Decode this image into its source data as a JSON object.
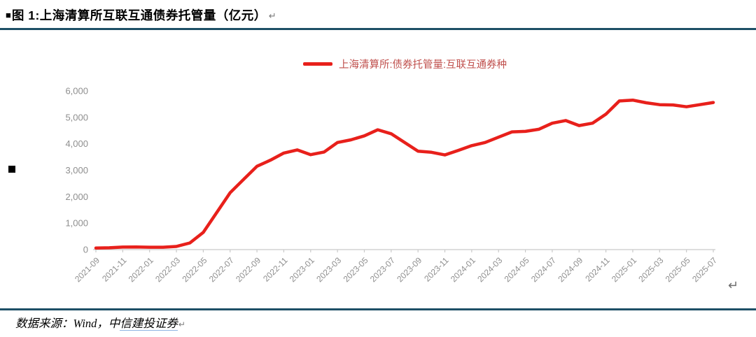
{
  "page": {
    "title_bullet": "■",
    "title": "图 1:上海清算所互联互通债券托管量（亿元）",
    "return_mark": "↵"
  },
  "legend": {
    "label": "上海清算所:债券托管量:互联互通券种"
  },
  "footer": {
    "prefix": "数据来源：Wind，中",
    "link": "信建投证券",
    "return_mark": "↵"
  },
  "colors": {
    "line": "#e8201b",
    "legend_text": "#c0504d",
    "rule": "#1d4f66",
    "axis_text": "#8e8e8e",
    "axis_line": "#c9c9c9"
  },
  "chart_data": {
    "type": "line",
    "title": "上海清算所互联互通债券托管量（亿元）",
    "series_name": "上海清算所:债券托管量:互联互通券种",
    "x": [
      "2021-09",
      "2021-10",
      "2021-11",
      "2021-12",
      "2022-01",
      "2022-02",
      "2022-03",
      "2022-04",
      "2022-05",
      "2022-06",
      "2022-07",
      "2022-08",
      "2022-09",
      "2022-10",
      "2022-11",
      "2022-12",
      "2023-01",
      "2023-02",
      "2023-03",
      "2023-04",
      "2023-05",
      "2023-06",
      "2023-07",
      "2023-08",
      "2023-09",
      "2023-10",
      "2023-11",
      "2023-12",
      "2024-01",
      "2024-02",
      "2024-03",
      "2024-04",
      "2024-05",
      "2024-06",
      "2024-07",
      "2024-08",
      "2024-09",
      "2024-10",
      "2024-11",
      "2024-12",
      "2025-01",
      "2025-02",
      "2025-03",
      "2025-04",
      "2025-05",
      "2025-06",
      "2025-07"
    ],
    "values": [
      60,
      70,
      95,
      100,
      90,
      90,
      120,
      250,
      650,
      1400,
      2150,
      2650,
      3150,
      3380,
      3650,
      3770,
      3590,
      3690,
      4050,
      4150,
      4300,
      4530,
      4380,
      4050,
      3720,
      3680,
      3580,
      3750,
      3930,
      4050,
      4250,
      4450,
      4470,
      4550,
      4780,
      4880,
      4690,
      4780,
      5120,
      5620,
      5650,
      5550,
      5480,
      5470,
      5400,
      5480,
      5560
    ],
    "xlabel": "",
    "ylabel": "",
    "ylim": [
      0,
      6000
    ],
    "ytick_step": 1000,
    "ytick_labels": [
      "0",
      "1,000",
      "2,000",
      "3,000",
      "4,000",
      "5,000",
      "6,000"
    ],
    "xtick_every": 2,
    "legend_position": "top-center",
    "grid": false
  }
}
